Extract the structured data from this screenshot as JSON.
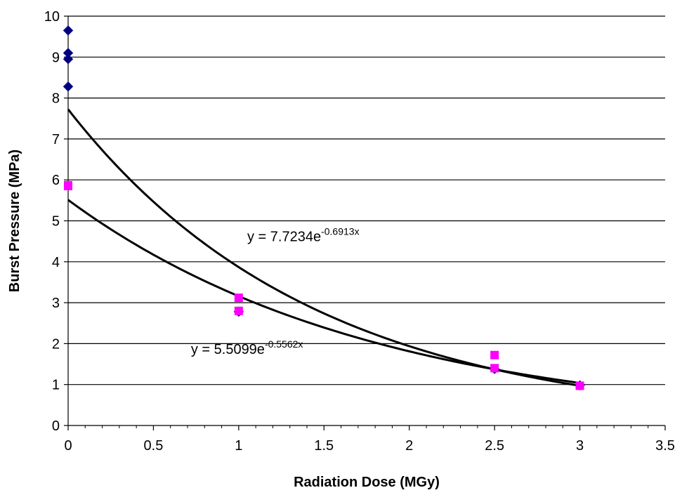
{
  "chart_data": {
    "type": "scatter",
    "xlabel": "Radiation Dose (MGy)",
    "ylabel": "Burst Pressure (MPa)",
    "xlim": [
      0,
      3.5
    ],
    "ylim": [
      0,
      10
    ],
    "x_ticks": [
      0,
      0.5,
      1,
      1.5,
      2,
      2.5,
      3,
      3.5
    ],
    "x_tick_labels": [
      "0",
      "0.5",
      "1",
      "1.5",
      "2",
      "2.5",
      "3",
      "3.5"
    ],
    "y_ticks": [
      0,
      1,
      2,
      3,
      4,
      5,
      6,
      7,
      8,
      9,
      10
    ],
    "y_tick_labels": [
      "0",
      "1",
      "2",
      "3",
      "4",
      "5",
      "6",
      "7",
      "8",
      "9",
      "10"
    ],
    "grid": "horizontal",
    "legend": "none",
    "series": [
      {
        "color": "#000080",
        "marker": "diamond",
        "points": [
          [
            0,
            9.65
          ],
          [
            0,
            9.1
          ],
          [
            0,
            8.95
          ],
          [
            0,
            8.28
          ],
          [
            1,
            2.78
          ],
          [
            2.5,
            1.38
          ],
          [
            3,
            0.98
          ]
        ]
      },
      {
        "color": "#ff00ff",
        "marker": "square",
        "points": [
          [
            0,
            5.87
          ],
          [
            0,
            5.85
          ],
          [
            1,
            3.12
          ],
          [
            1,
            2.8
          ],
          [
            2.5,
            1.72
          ],
          [
            2.5,
            1.4
          ],
          [
            3,
            0.97
          ]
        ]
      }
    ],
    "trendlines": [
      {
        "a": 7.7234,
        "b": -0.6913,
        "x_range": [
          0,
          3
        ],
        "label_base": "y = 7.7234e",
        "label_exp": "-0.6913x",
        "label_at": [
          1.05,
          4.5
        ]
      },
      {
        "a": 5.5099,
        "b": -0.5562,
        "x_range": [
          0,
          3
        ],
        "label_base": "y = 5.5099e",
        "label_exp": "-0.5562x",
        "label_at": [
          0.72,
          1.75
        ]
      }
    ]
  }
}
